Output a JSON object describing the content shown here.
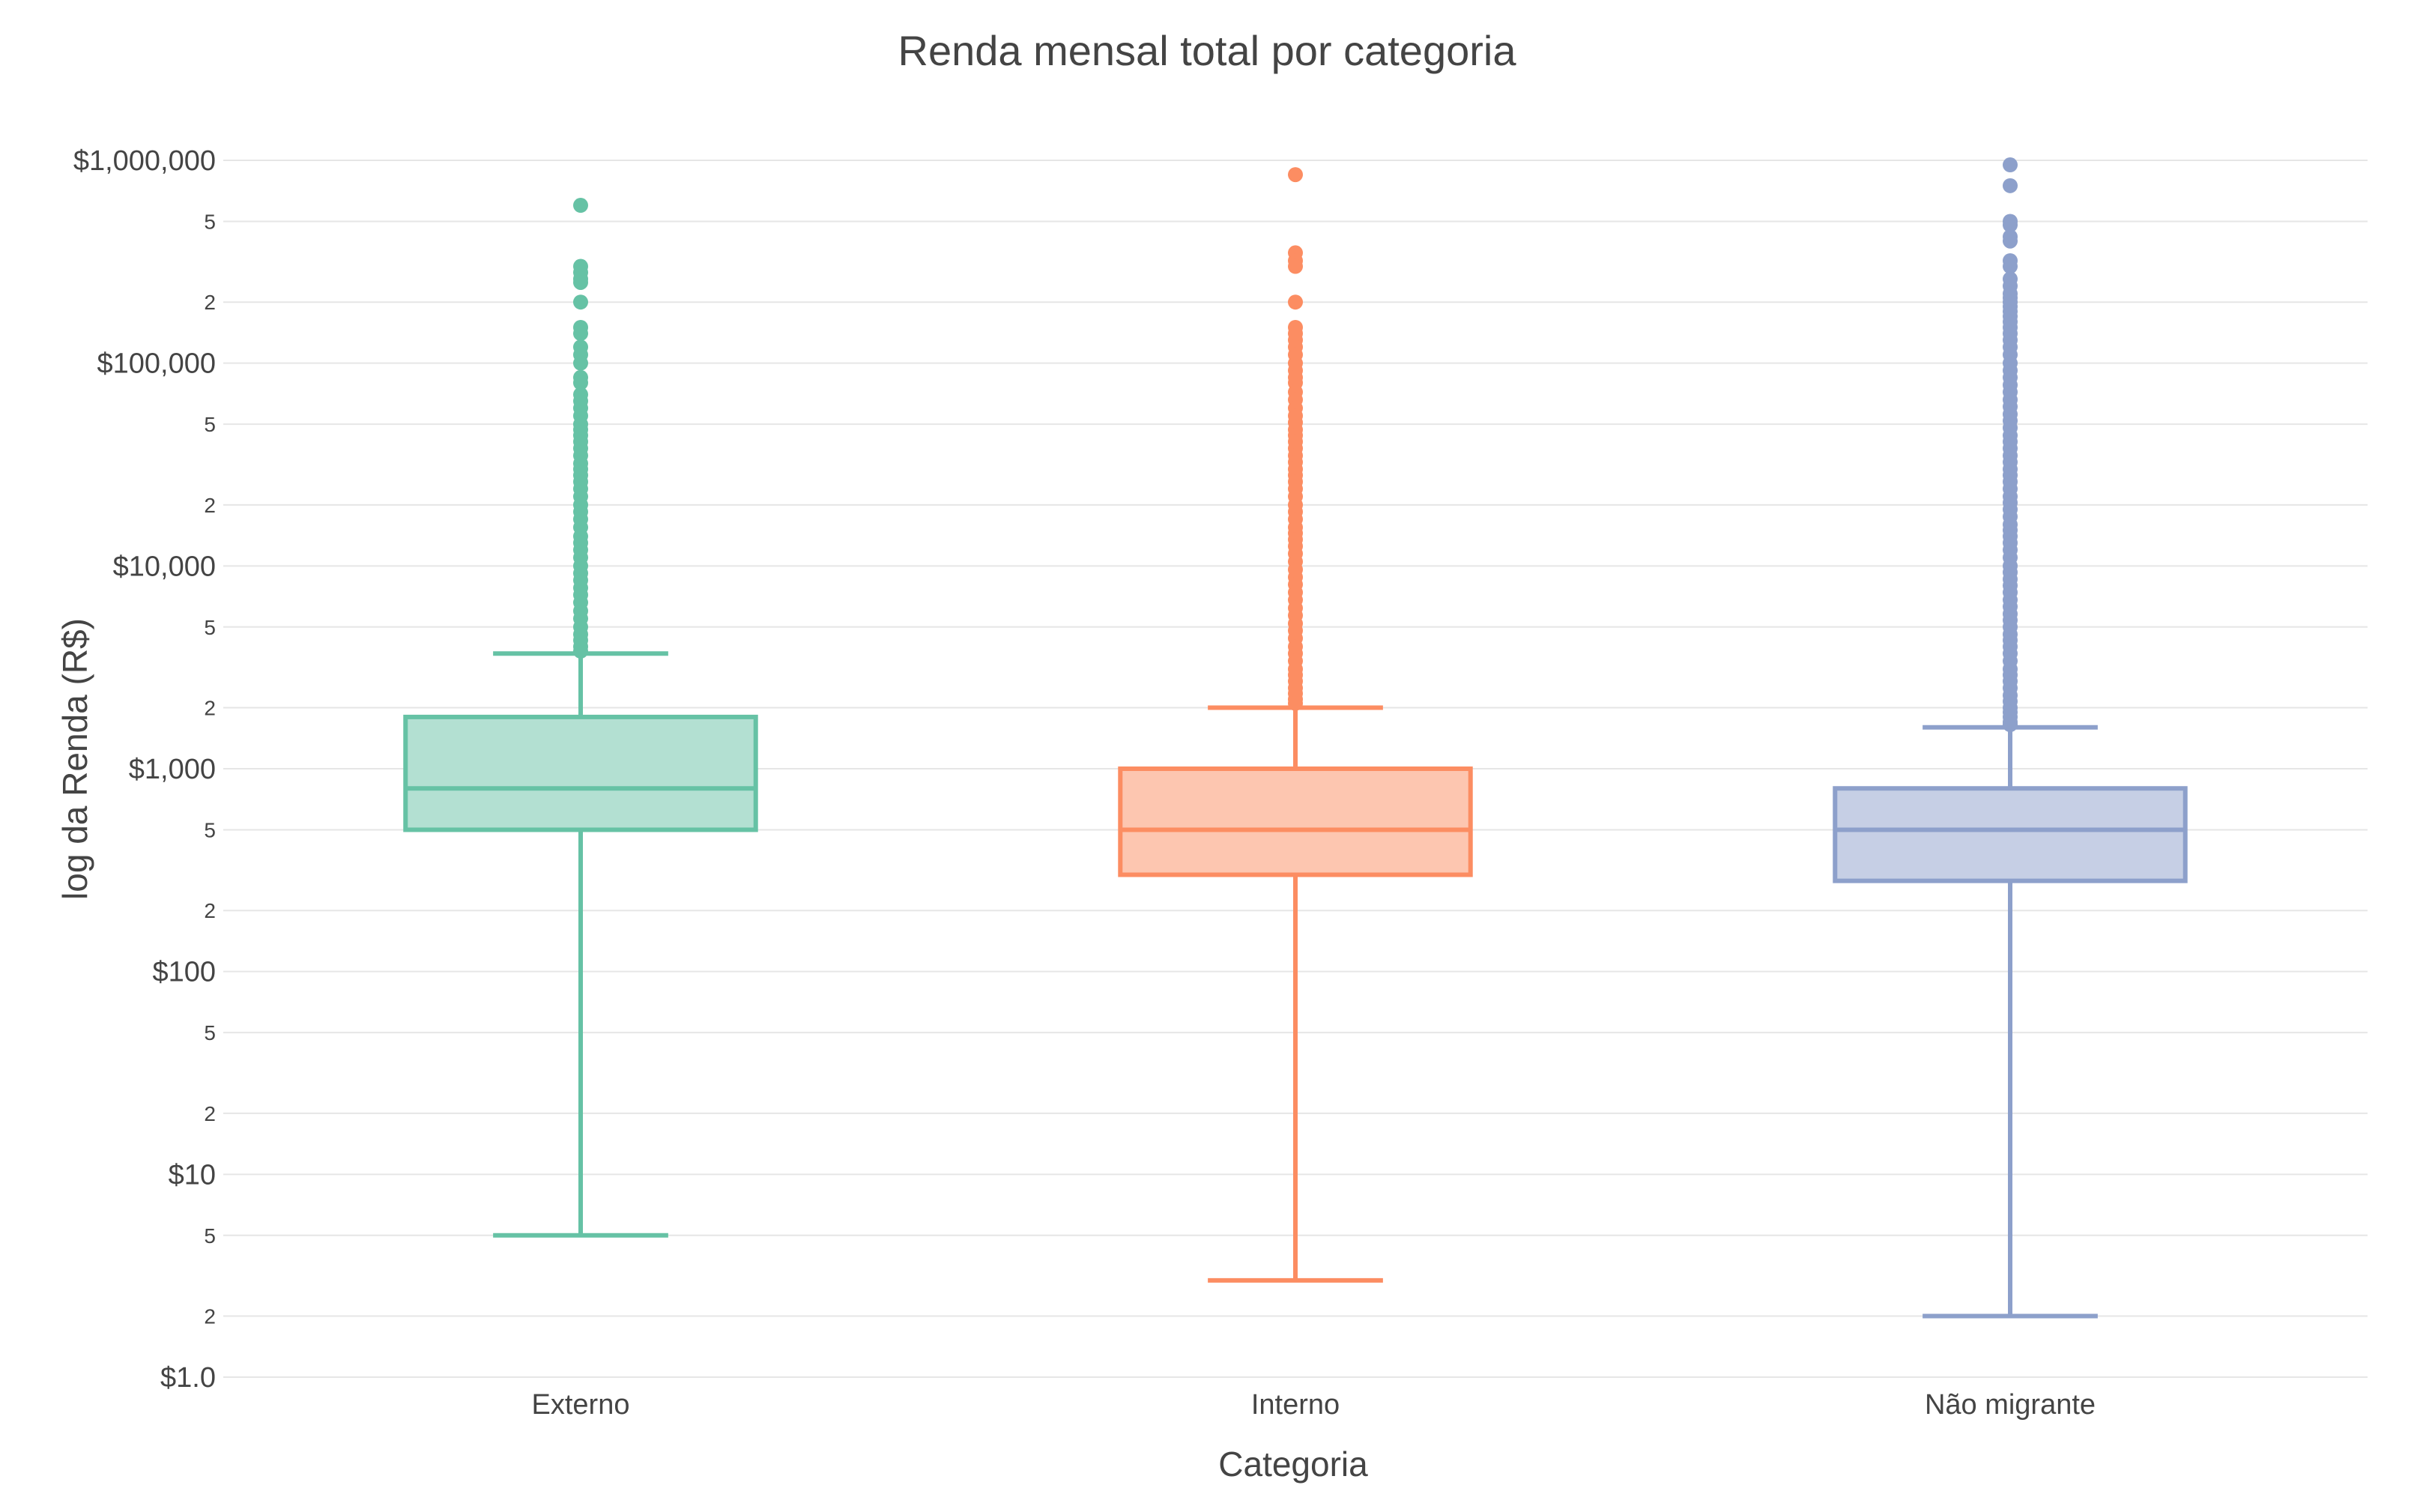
{
  "chart_data": {
    "type": "box",
    "title": "Renda mensal total por categoria",
    "xlabel": "Categoria",
    "ylabel": "log da Renda (R$)",
    "yscale": "log",
    "ylim": [
      1,
      1000000
    ],
    "grid": true,
    "legend": "none",
    "major_ticks": [
      {
        "value": 1,
        "label": "$1.0"
      },
      {
        "value": 10,
        "label": "$10"
      },
      {
        "value": 100,
        "label": "$100"
      },
      {
        "value": 1000,
        "label": "$1,000"
      },
      {
        "value": 10000,
        "label": "$10,000"
      },
      {
        "value": 100000,
        "label": "$100,000"
      },
      {
        "value": 1000000,
        "label": "$1,000,000"
      }
    ],
    "minor_ticks": [
      {
        "value": 2,
        "label": "2"
      },
      {
        "value": 5,
        "label": "5"
      },
      {
        "value": 20,
        "label": "2"
      },
      {
        "value": 50,
        "label": "5"
      },
      {
        "value": 200,
        "label": "2"
      },
      {
        "value": 500,
        "label": "5"
      },
      {
        "value": 2000,
        "label": "2"
      },
      {
        "value": 5000,
        "label": "5"
      },
      {
        "value": 20000,
        "label": "2"
      },
      {
        "value": 50000,
        "label": "5"
      },
      {
        "value": 200000,
        "label": "2"
      },
      {
        "value": 500000,
        "label": "5"
      }
    ],
    "categories": [
      "Externo",
      "Interno",
      "Não migrante"
    ],
    "series": [
      {
        "category": "Externo",
        "color": "#66c2a5",
        "fill": "#b3e0d2",
        "lower_whisker": 5,
        "q1": 500,
        "median": 800,
        "q3": 1800,
        "upper_whisker": 3700,
        "outliers": [
          600000,
          300000,
          280000,
          260000,
          250000,
          200000,
          150000,
          140000,
          120000,
          110000,
          100000,
          85000,
          80000,
          70000,
          65000,
          60000,
          55000,
          50000,
          47000,
          44000,
          41000,
          38000,
          35000,
          32000,
          30000,
          28000,
          26000,
          24000,
          22000,
          20000,
          18500,
          17000,
          15500,
          14000,
          13000,
          12000,
          11000,
          10000,
          9200,
          8500,
          7800,
          7200,
          6600,
          6000,
          5500,
          5000,
          4600,
          4300,
          4000,
          3800
        ]
      },
      {
        "category": "Interno",
        "color": "#fc8d62",
        "fill": "#fdc6b0",
        "lower_whisker": 3,
        "q1": 300,
        "median": 500,
        "q3": 1000,
        "upper_whisker": 2000,
        "outliers": [
          850000,
          350000,
          320000,
          300000,
          200000,
          150000,
          140000,
          130000,
          120000,
          110000,
          100000,
          92000,
          85000,
          80000,
          72000,
          66000,
          60000,
          55000,
          51000,
          47000,
          44000,
          41000,
          38000,
          35000,
          32500,
          30000,
          28000,
          26000,
          24000,
          22000,
          20000,
          18500,
          17000,
          15500,
          14500,
          13500,
          12500,
          11500,
          10500,
          9600,
          8800,
          8100,
          7400,
          6800,
          6200,
          5700,
          5200,
          4800,
          4400,
          4000,
          3700,
          3400,
          3100,
          2900,
          2700,
          2500,
          2350,
          2200,
          2100
        ]
      },
      {
        "category": "Não migrante",
        "color": "#8da0cb",
        "fill": "#c6cfe5",
        "lower_whisker": 2,
        "q1": 280,
        "median": 500,
        "q3": 800,
        "upper_whisker": 1600,
        "outliers": [
          950000,
          750000,
          500000,
          480000,
          420000,
          400000,
          320000,
          300000,
          260000,
          240000,
          220000,
          210000,
          200000,
          190000,
          180000,
          170000,
          160000,
          150000,
          140000,
          130000,
          120000,
          110000,
          100000,
          92000,
          85000,
          78000,
          72000,
          66000,
          61000,
          56000,
          52000,
          48000,
          44000,
          41000,
          38000,
          35000,
          32500,
          30000,
          28000,
          26000,
          24000,
          22000,
          20500,
          19000,
          17500,
          16000,
          15000,
          14000,
          13000,
          12000,
          11000,
          10000,
          9300,
          8600,
          8000,
          7400,
          6800,
          6300,
          5800,
          5400,
          5000,
          4600,
          4300,
          4000,
          3700,
          3400,
          3100,
          2900,
          2700,
          2500,
          2300,
          2150,
          2000,
          1900,
          1800,
          1700,
          1650
        ]
      }
    ]
  }
}
